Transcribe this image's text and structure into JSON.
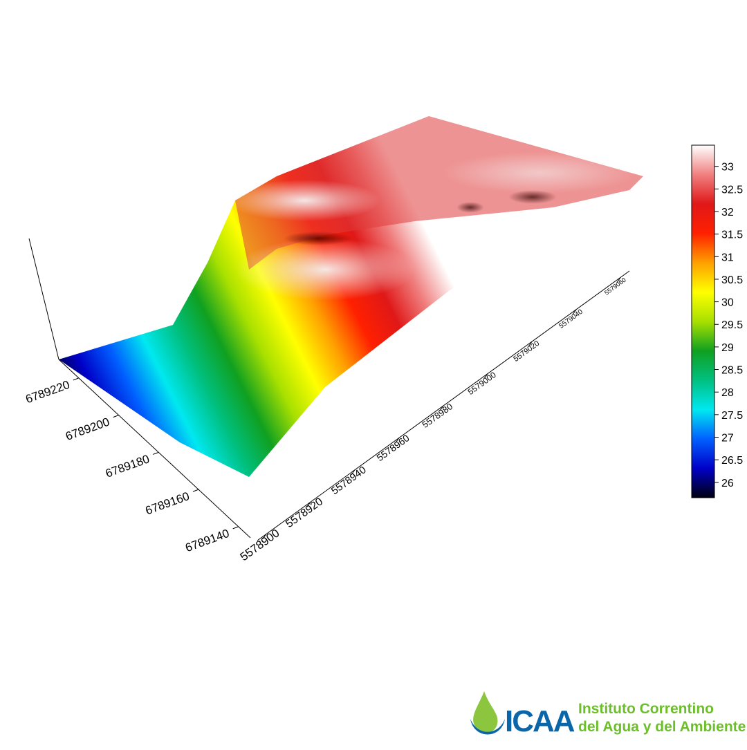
{
  "chart_data": {
    "type": "surface",
    "xlim": [
      5578896,
      5579064
    ],
    "xticks": [
      5578900,
      5578920,
      5578940,
      5578960,
      5578980,
      5579000,
      5579020,
      5579040,
      5579060
    ],
    "ylim": [
      6789134,
      6789230
    ],
    "yticks": [
      6789140,
      6789160,
      6789180,
      6789200,
      6789220
    ],
    "colorbar": {
      "lim": [
        25.66,
        33.47
      ],
      "ticks": [
        26,
        26.5,
        27,
        27.5,
        28,
        28.5,
        29,
        29.5,
        30,
        30.5,
        31,
        31.5,
        32,
        32.5,
        33
      ],
      "colors": [
        "#000010",
        "#0000c8",
        "#0060ff",
        "#00e8f0",
        "#00c080",
        "#10a020",
        "#a8e000",
        "#ffff00",
        "#ffa000",
        "#ff2000",
        "#e01818",
        "#f08080",
        "#ffffff"
      ]
    }
  },
  "logo": {
    "mark": "ICAA",
    "line1": "Instituto Correntino",
    "line2": "del Agua y del Ambiente"
  }
}
